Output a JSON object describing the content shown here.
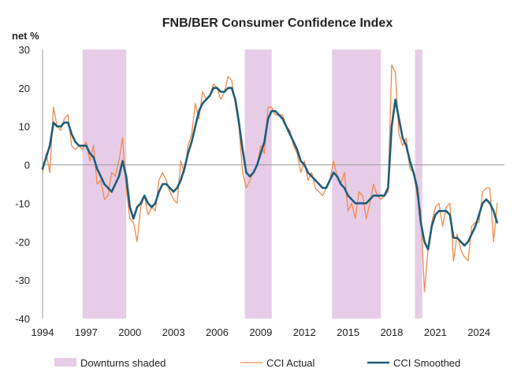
{
  "chart_data": {
    "type": "line",
    "title": "FNB/BER Consumer Confidence Index",
    "ylabel": "net %",
    "xlabel": "",
    "ylim": [
      -40,
      30
    ],
    "xlim": [
      1994,
      2025.75
    ],
    "y_ticks": [
      30,
      20,
      10,
      0,
      -10,
      -20,
      -30,
      -40
    ],
    "x_ticks": [
      1994,
      1997,
      2000,
      2003,
      2006,
      2009,
      2012,
      2015,
      2018,
      2021,
      2024
    ],
    "grid": false,
    "zero_line": true,
    "legend_position": "bottom",
    "colors": {
      "shading": "#e6cce6",
      "actual": "#f08a4b",
      "smoothed": "#1f5c78",
      "axis": "#999999"
    },
    "downturns": [
      {
        "start": 1996.75,
        "end": 1999.75
      },
      {
        "start": 2007.9,
        "end": 2009.75
      },
      {
        "start": 2013.9,
        "end": 2017.25
      },
      {
        "start": 2019.6,
        "end": 2020.1
      }
    ],
    "series": [
      {
        "name": "Downturns shaded",
        "kind": "shading"
      },
      {
        "name": "CCI Actual",
        "kind": "line",
        "x": [
          1994.0,
          1994.25,
          1994.5,
          1994.75,
          1995.0,
          1995.25,
          1995.5,
          1995.75,
          1996.0,
          1996.25,
          1996.5,
          1996.75,
          1997.0,
          1997.25,
          1997.5,
          1997.75,
          1998.0,
          1998.25,
          1998.5,
          1998.75,
          1999.0,
          1999.25,
          1999.5,
          1999.75,
          2000.0,
          2000.25,
          2000.5,
          2000.75,
          2001.0,
          2001.25,
          2001.5,
          2001.75,
          2002.0,
          2002.25,
          2002.5,
          2002.75,
          2003.0,
          2003.25,
          2003.5,
          2003.75,
          2004.0,
          2004.25,
          2004.5,
          2004.75,
          2005.0,
          2005.25,
          2005.5,
          2005.75,
          2006.0,
          2006.25,
          2006.5,
          2006.75,
          2007.0,
          2007.25,
          2007.5,
          2007.75,
          2008.0,
          2008.25,
          2008.5,
          2008.75,
          2009.0,
          2009.25,
          2009.5,
          2009.75,
          2010.0,
          2010.25,
          2010.5,
          2010.75,
          2011.0,
          2011.25,
          2011.5,
          2011.75,
          2012.0,
          2012.25,
          2012.5,
          2012.75,
          2013.0,
          2013.25,
          2013.5,
          2013.75,
          2014.0,
          2014.25,
          2014.5,
          2014.75,
          2015.0,
          2015.25,
          2015.5,
          2015.75,
          2016.0,
          2016.25,
          2016.5,
          2016.75,
          2017.0,
          2017.25,
          2017.5,
          2017.75,
          2018.0,
          2018.25,
          2018.5,
          2018.75,
          2019.0,
          2019.25,
          2019.5,
          2019.75,
          2020.0,
          2020.25,
          2020.5,
          2020.75,
          2021.0,
          2021.25,
          2021.5,
          2021.75,
          2022.0,
          2022.25,
          2022.5,
          2022.75,
          2023.0,
          2023.25,
          2023.5,
          2023.75,
          2024.0,
          2024.25,
          2024.5,
          2024.75,
          2025.0,
          2025.25
        ],
        "values": [
          -2,
          3,
          -2,
          15,
          10,
          9,
          12,
          13,
          5,
          4,
          5,
          4,
          6,
          1,
          5,
          -5,
          -4,
          -9,
          -8,
          -2,
          -3,
          1,
          7,
          -6,
          -14,
          -15,
          -20,
          -11,
          -8,
          -13,
          -11,
          -12,
          -4,
          -2,
          -4,
          -7,
          -9,
          -10,
          1,
          -2,
          5,
          8,
          16,
          12,
          19,
          17,
          18,
          21,
          20,
          17,
          19,
          23,
          22,
          16,
          10,
          -2,
          -6,
          -4,
          -2,
          0,
          5,
          3,
          15,
          15,
          13,
          13,
          13,
          10,
          9,
          5,
          3,
          -2,
          1,
          -4,
          -2,
          -6,
          -7,
          -8,
          -6,
          -4,
          1,
          -3,
          -5,
          -2,
          -12,
          -10,
          -14,
          -7,
          -8,
          -14,
          -10,
          -5,
          -8,
          -9,
          -8,
          -7,
          26,
          24,
          8,
          5,
          7,
          -1,
          -2,
          -8,
          -12,
          -33,
          -22,
          -15,
          -11,
          -10,
          -16,
          -11,
          -10,
          -25,
          -18,
          -22,
          -24,
          -25,
          -16,
          -15,
          -15,
          -7,
          -6,
          -6,
          -20,
          -10
        ]
      },
      {
        "name": "CCI Smoothed",
        "kind": "line",
        "x": [
          1994.0,
          1994.25,
          1994.5,
          1994.75,
          1995.0,
          1995.25,
          1995.5,
          1995.75,
          1996.0,
          1996.25,
          1996.5,
          1996.75,
          1997.0,
          1997.25,
          1997.5,
          1997.75,
          1998.0,
          1998.25,
          1998.5,
          1998.75,
          1999.0,
          1999.25,
          1999.5,
          1999.75,
          2000.0,
          2000.25,
          2000.5,
          2000.75,
          2001.0,
          2001.25,
          2001.5,
          2001.75,
          2002.0,
          2002.25,
          2002.5,
          2002.75,
          2003.0,
          2003.25,
          2003.5,
          2003.75,
          2004.0,
          2004.25,
          2004.5,
          2004.75,
          2005.0,
          2005.25,
          2005.5,
          2005.75,
          2006.0,
          2006.25,
          2006.5,
          2006.75,
          2007.0,
          2007.25,
          2007.5,
          2007.75,
          2008.0,
          2008.25,
          2008.5,
          2008.75,
          2009.0,
          2009.25,
          2009.5,
          2009.75,
          2010.0,
          2010.25,
          2010.5,
          2010.75,
          2011.0,
          2011.25,
          2011.5,
          2011.75,
          2012.0,
          2012.25,
          2012.5,
          2012.75,
          2013.0,
          2013.25,
          2013.5,
          2013.75,
          2014.0,
          2014.25,
          2014.5,
          2014.75,
          2015.0,
          2015.25,
          2015.5,
          2015.75,
          2016.0,
          2016.25,
          2016.5,
          2016.75,
          2017.0,
          2017.25,
          2017.5,
          2017.75,
          2018.0,
          2018.25,
          2018.5,
          2018.75,
          2019.0,
          2019.25,
          2019.5,
          2019.75,
          2020.0,
          2020.25,
          2020.5,
          2020.75,
          2021.0,
          2021.25,
          2021.5,
          2021.75,
          2022.0,
          2022.25,
          2022.5,
          2022.75,
          2023.0,
          2023.25,
          2023.5,
          2023.75,
          2024.0,
          2024.25,
          2024.5,
          2024.75,
          2025.0,
          2025.25
        ],
        "values": [
          -1,
          2,
          5,
          11,
          10,
          10,
          11,
          11,
          8,
          6,
          5,
          5,
          5,
          3,
          2,
          -1,
          -3,
          -5,
          -6,
          -7,
          -5,
          -3,
          1,
          -3,
          -11,
          -14,
          -11,
          -10,
          -8,
          -10,
          -11,
          -10,
          -7,
          -5,
          -5,
          -6,
          -7,
          -6,
          -4,
          -1,
          3,
          6,
          10,
          14,
          16,
          17,
          18,
          20,
          20,
          19,
          19,
          20,
          20,
          17,
          11,
          4,
          -2,
          -3,
          -2,
          0,
          3,
          6,
          12,
          14,
          14,
          13,
          12,
          10,
          8,
          6,
          4,
          1,
          0,
          -2,
          -3,
          -4,
          -5,
          -6,
          -6,
          -4,
          -2,
          -3,
          -5,
          -6,
          -8,
          -9,
          -10,
          -10,
          -10,
          -10,
          -9,
          -8,
          -8,
          -8,
          -8,
          -6,
          10,
          17,
          12,
          7,
          5,
          1,
          -2,
          -6,
          -15,
          -20,
          -22,
          -16,
          -13,
          -12,
          -12,
          -12,
          -13,
          -19,
          -19,
          -20,
          -21,
          -20,
          -18,
          -16,
          -13,
          -10,
          -9,
          -10,
          -12,
          -15
        ]
      }
    ]
  }
}
